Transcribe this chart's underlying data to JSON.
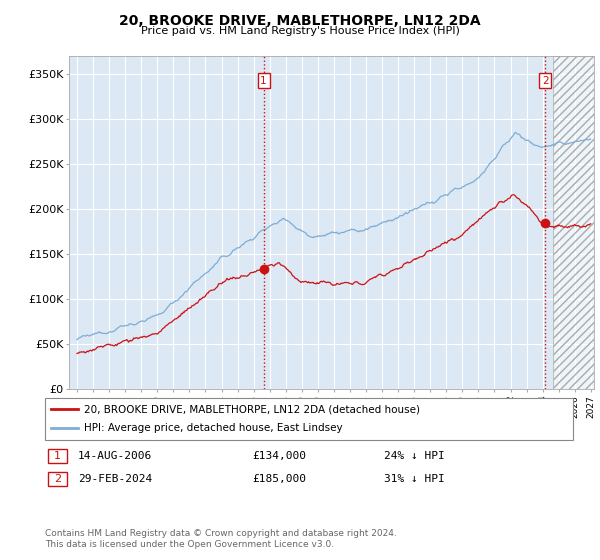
{
  "title": "20, BROOKE DRIVE, MABLETHORPE, LN12 2DA",
  "subtitle": "Price paid vs. HM Land Registry's House Price Index (HPI)",
  "ylabel_ticks": [
    "£0",
    "£50K",
    "£100K",
    "£150K",
    "£200K",
    "£250K",
    "£300K",
    "£350K"
  ],
  "ytick_values": [
    0,
    50000,
    100000,
    150000,
    200000,
    250000,
    300000,
    350000
  ],
  "ylim": [
    0,
    370000
  ],
  "xlim_start": 1994.5,
  "xlim_end": 2027.2,
  "background_color": "#ffffff",
  "plot_bg_color": "#dce9f5",
  "grid_color": "#ffffff",
  "hpi_color": "#7eadd4",
  "price_color": "#cc1111",
  "marker1_date": 2006.62,
  "marker1_price": 134000,
  "marker1_label": "1",
  "marker2_date": 2024.17,
  "marker2_price": 185000,
  "marker2_label": "2",
  "legend_line1": "20, BROOKE DRIVE, MABLETHORPE, LN12 2DA (detached house)",
  "legend_line2": "HPI: Average price, detached house, East Lindsey",
  "table_row1": [
    "1",
    "14-AUG-2006",
    "£134,000",
    "24% ↓ HPI"
  ],
  "table_row2": [
    "2",
    "29-FEB-2024",
    "£185,000",
    "31% ↓ HPI"
  ],
  "footer": "Contains HM Land Registry data © Crown copyright and database right 2024.\nThis data is licensed under the Open Government Licence v3.0.",
  "xticks": [
    1995,
    1996,
    1997,
    1998,
    1999,
    2000,
    2001,
    2002,
    2003,
    2004,
    2005,
    2006,
    2007,
    2008,
    2009,
    2010,
    2011,
    2012,
    2013,
    2014,
    2015,
    2016,
    2017,
    2018,
    2019,
    2020,
    2021,
    2022,
    2023,
    2024,
    2025,
    2026,
    2027
  ],
  "vline_color": "#cc1111",
  "vline_style": ":",
  "marker_box_color": "#cc1111",
  "hatch_start": 2024.62
}
